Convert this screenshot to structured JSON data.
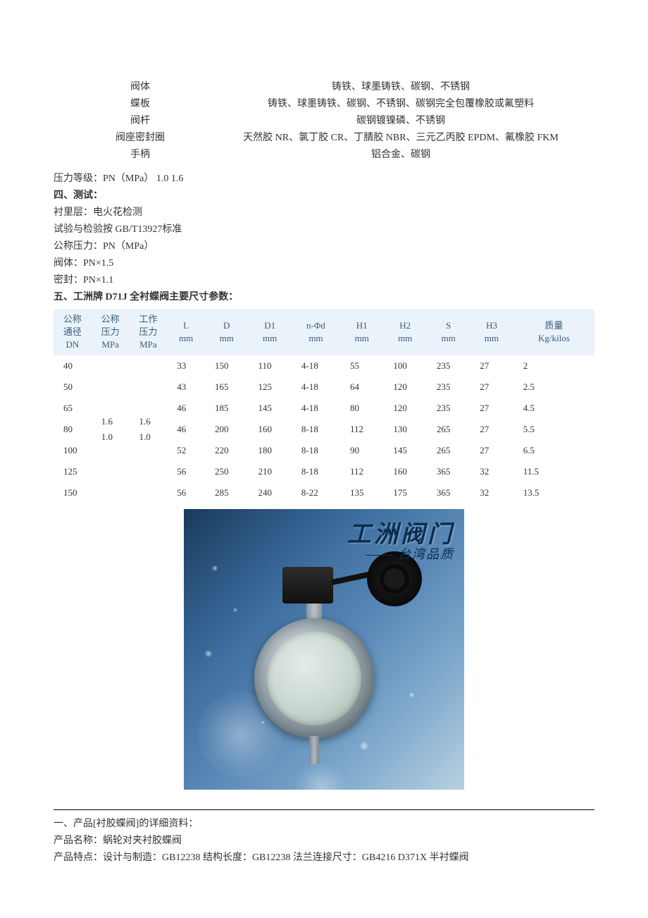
{
  "materials": {
    "rows": [
      {
        "label": "阀体",
        "value": "铸铁、球墨铸铁、碳钢、不锈钢"
      },
      {
        "label": "蝶板",
        "value": "铸铁、球墨铸铁、碳钢、不锈钢、碳钢完全包覆橡胶或氟塑料"
      },
      {
        "label": "阀杆",
        "value": "碳钢镀镍磷、不锈钢"
      },
      {
        "label": "阀座密封圈",
        "value": "天然胶 NR、氯丁胶 CR、丁腈胶 NBR、三元乙丙胶 EPDM、氟橡胶 FKM"
      },
      {
        "label": "手柄",
        "value": "铝合金、碳钢"
      }
    ]
  },
  "pressure_line": "压力等级：PN（MPa）   1.0   1.6",
  "section4_title": "四、测试：",
  "test_lines": [
    "衬里层：电火花检测",
    "试验与检验按 GB/T13927标准",
    "公称压力：PN（MPa）",
    "阀体：PN×1.5",
    "密封：PN×1.1"
  ],
  "section5_title": "五、工洲牌 D71J 全衬蝶阀主要尺寸参数：",
  "table": {
    "header_bg": "#eaf3fa",
    "header_color": "#3a5c7a",
    "columns": [
      "公称\n通径\nDN",
      "公称\n压力\nMPa",
      "工作\n压力\nMPa",
      "L\nmm",
      "D\nmm",
      "D1\nmm",
      "n-Φd\nmm",
      "H1\nmm",
      "H2\nmm",
      "S\nmm",
      "H3\nmm",
      "质量\nKg/kilos"
    ],
    "merged_mpa_nominal": "1.6\n1.0",
    "merged_mpa_working": "1.6\n1.0",
    "rows": [
      [
        "40",
        "33",
        "150",
        "110",
        "4-18",
        "55",
        "100",
        "235",
        "27",
        "2"
      ],
      [
        "50",
        "43",
        "165",
        "125",
        "4-18",
        "64",
        "120",
        "235",
        "27",
        "2.5"
      ],
      [
        "65",
        "46",
        "185",
        "145",
        "4-18",
        "80",
        "120",
        "235",
        "27",
        "4.5"
      ],
      [
        "80",
        "46",
        "200",
        "160",
        "8-18",
        "112",
        "130",
        "265",
        "27",
        "5.5"
      ],
      [
        "100",
        "52",
        "220",
        "180",
        "8-18",
        "90",
        "145",
        "265",
        "27",
        "6.5"
      ],
      [
        "125",
        "56",
        "250",
        "210",
        "8-18",
        "112",
        "160",
        "365",
        "32",
        "11.5"
      ],
      [
        "150",
        "56",
        "285",
        "240",
        "8-22",
        "135",
        "175",
        "365",
        "32",
        "13.5"
      ]
    ]
  },
  "image": {
    "brand_cn": "工洲阀门",
    "brand_sub": "台湾品质"
  },
  "footer": {
    "line1": "一、产品[衬胶蝶阀]的详细资料：",
    "line2": "产品名称：蜗轮对夹衬胶蝶阀",
    "line3": "产品特点：设计与制造：GB12238  结构长度：GB12238  法兰连接尺寸：GB4216 D371X 半衬蝶阀"
  }
}
